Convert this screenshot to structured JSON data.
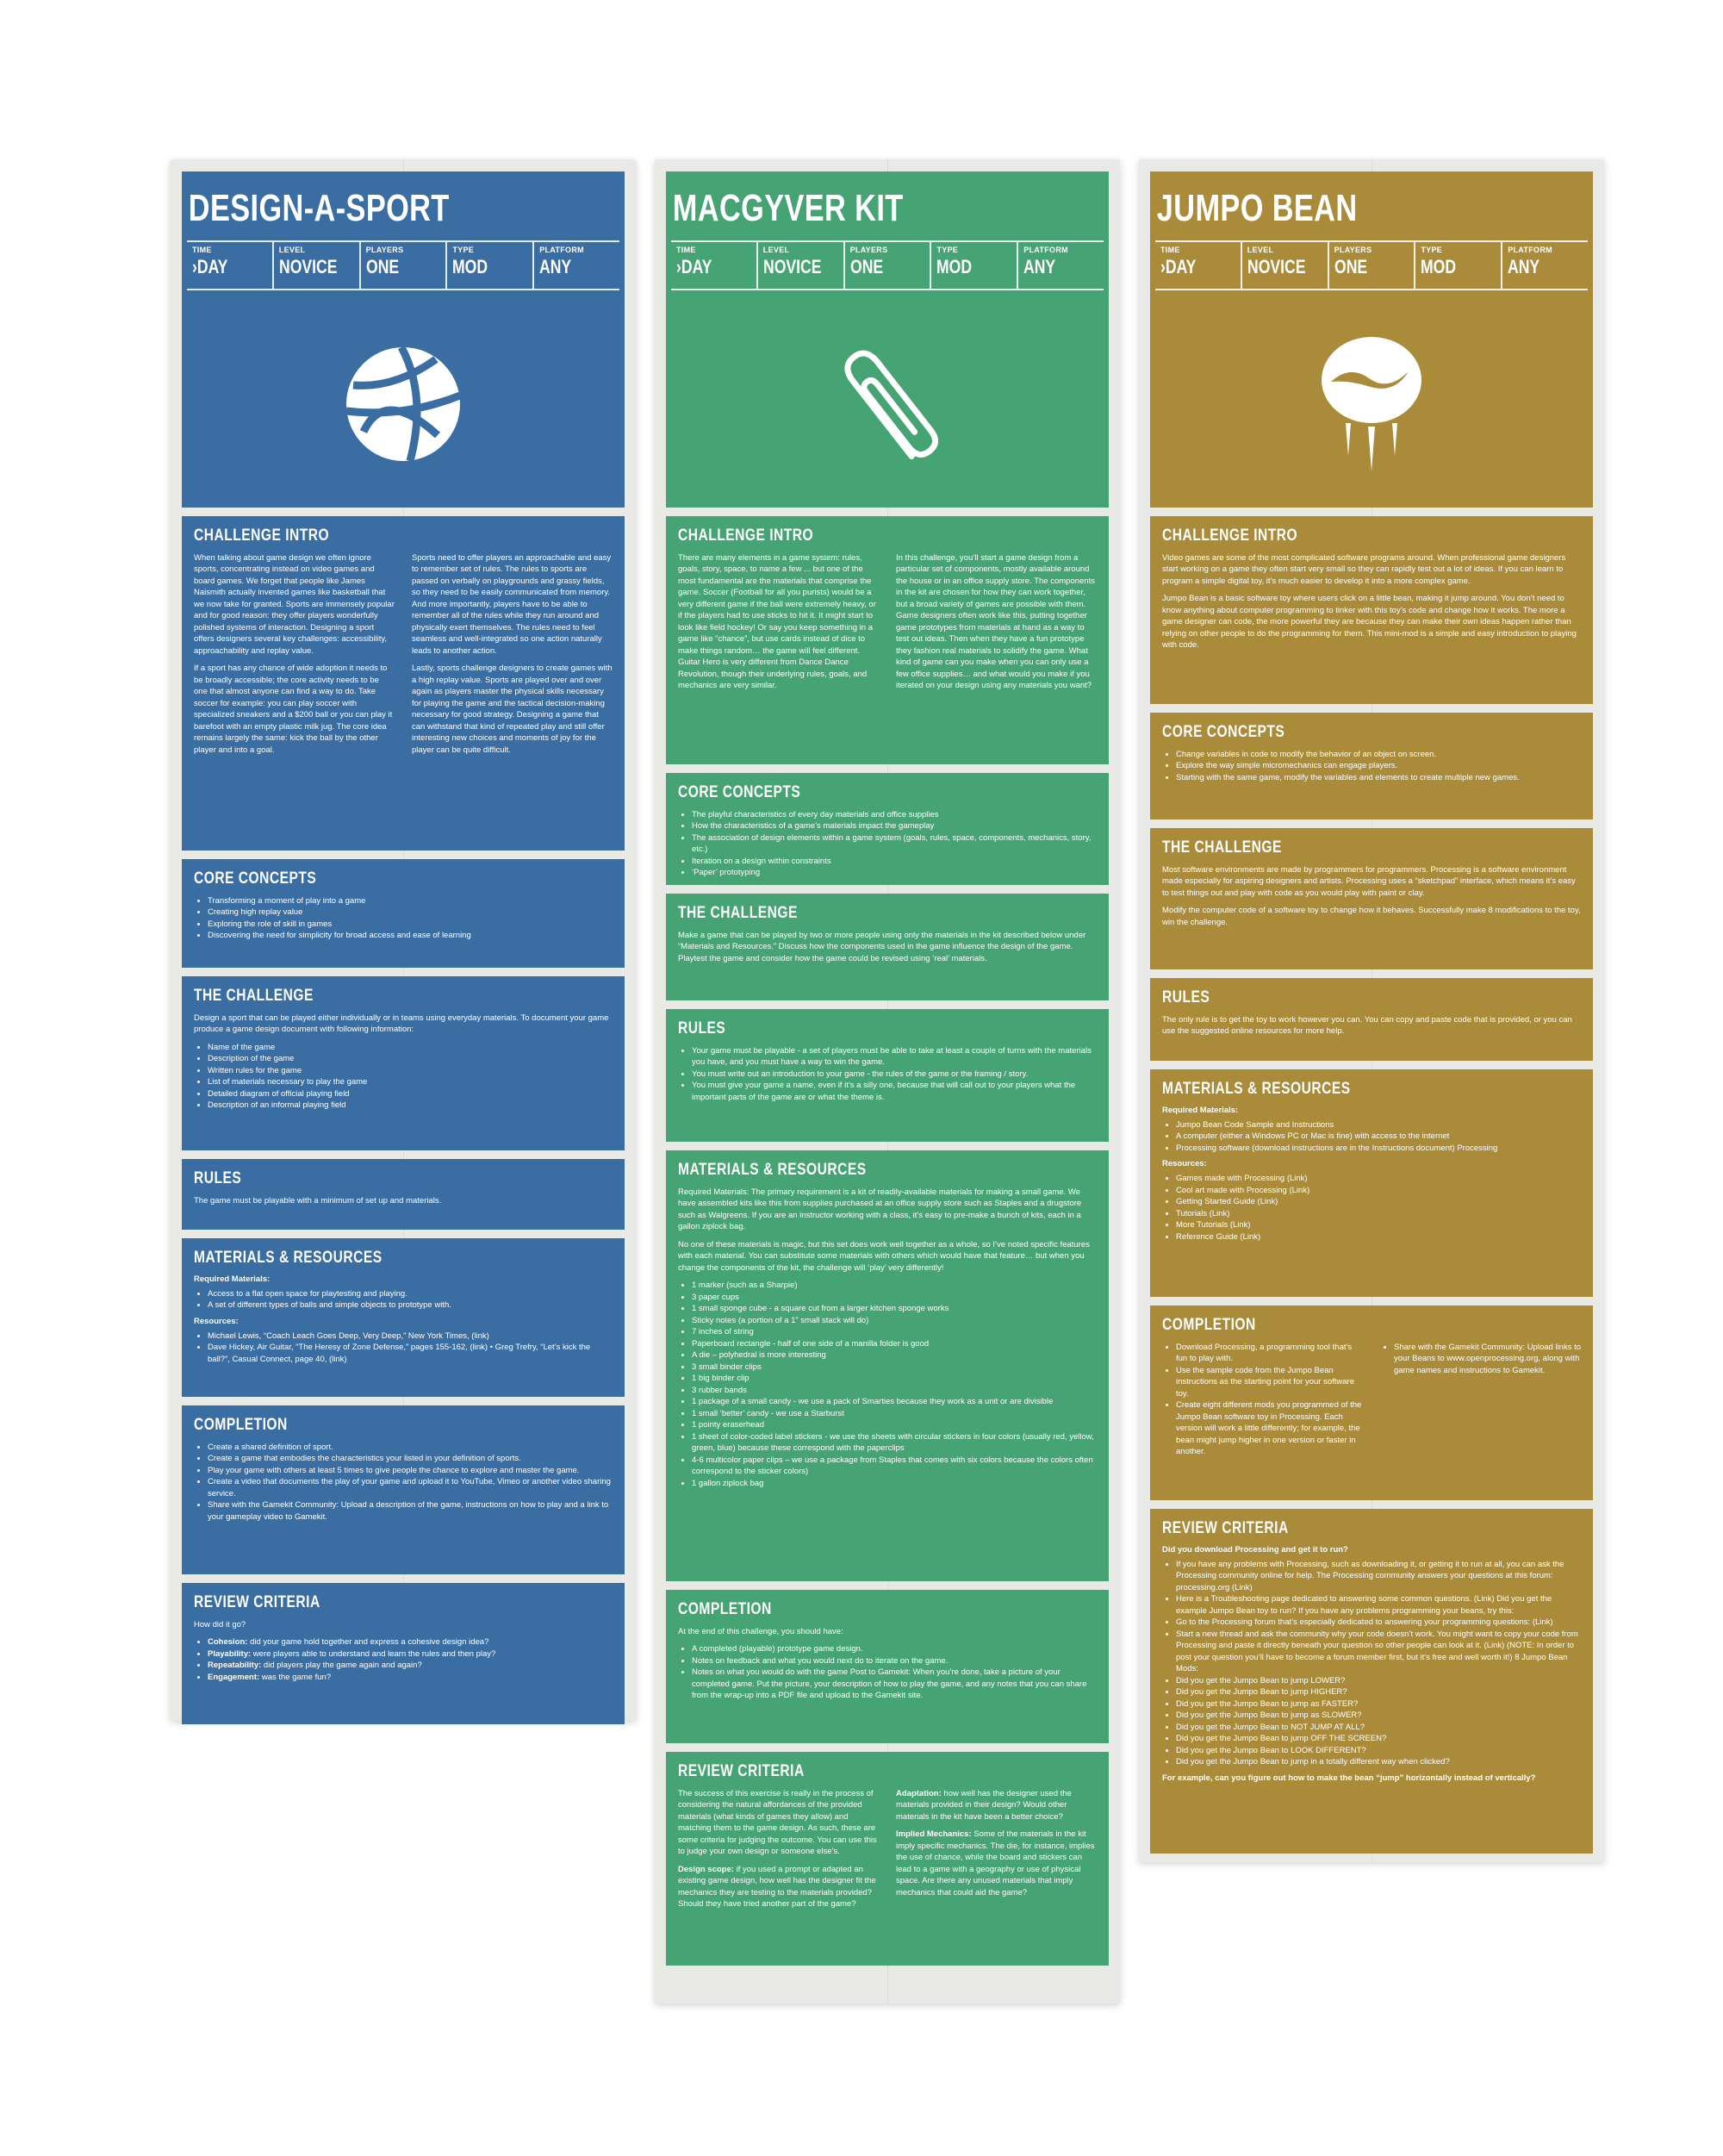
{
  "meta_labels": [
    "TIME",
    "LEVEL",
    "PLAYERS",
    "TYPE",
    "PLATFORM"
  ],
  "colors": {
    "blue": "#3a6ea3",
    "green": "#46a374",
    "gold": "#aa8b3a"
  },
  "posters": [
    {
      "id": "design-a-sport",
      "title": "DESIGN-A-SPORT",
      "meta_values": [
        "›DAY",
        "NOVICE",
        "ONE",
        "MOD",
        "ANY"
      ],
      "icon": "basketball-icon",
      "intro_title": "CHALLENGE INTRO",
      "intro_col1": [
        "When talking about game design we often ignore sports, concentrating instead on video games and board games. We forget that people like James Naismith actually invented games like basketball that we now take for granted. Sports are immensely popular and for good reason: they offer players wonderfully polished systems of interaction. Designing a sport offers designers several key challenges: accessibility, approachability and replay value.",
        "If a sport has any chance of wide adoption it needs to be broadly accessible; the core activity needs to be one that almost anyone can find a way to do. Take soccer for example: you can play soccer with specialized sneakers and a $200 ball or you can play it barefoot with an empty plastic milk jug. The core idea remains largely the same: kick the ball by the other player and into a goal."
      ],
      "intro_col2": [
        "Sports need to offer players an approachable and easy to remember set of rules. The rules to sports are passed on verbally on playgrounds and grassy fields, so they need to be easily communicated from memory. And more importantly, players have to be able to remember all of the rules while they run around and physically exert themselves. The rules need to feel seamless and well-integrated so one action naturally leads to another action.",
        "Lastly, sports challenge designers to create games with a high replay value. Sports are played over and over again as players master the physical skills necessary for playing the game and the tactical decision-making necessary for good strategy. Designing a game that can withstand that kind of repeated play and still offer interesting new choices and moments of joy for the player can be quite difficult."
      ],
      "concepts_title": "CORE CONCEPTS",
      "concepts": [
        "Transforming a moment of play into a game",
        "Creating high replay value",
        "Exploring the role of skill in games",
        "Discovering the need for simplicity for broad access and ease of learning"
      ],
      "challenge_title": "THE CHALLENGE",
      "challenge_text": "Design a sport that can be played either individually or in teams using everyday materials. To document your game produce a game design document with following information:",
      "challenge_list": [
        "Name of the game",
        "Description of the game",
        "Written rules for the game",
        "List of materials necessary to play the game",
        "Detailed diagram of official playing field",
        "Description of an informal playing field"
      ],
      "rules_title": "RULES",
      "rules_text": "The game must be playable with a minimum of set up and materials.",
      "materials_title": "MATERIALS & RESOURCES",
      "required_label": "Required Materials:",
      "required_list": [
        "Access to a flat open space for playtesting and playing.",
        "A set of different types of balls and simple objects to prototype with."
      ],
      "resources_label": "Resources:",
      "resources_list": [
        "Michael Lewis, “Coach Leach Goes Deep, Very Deep,” New York Times, (link)",
        "Dave Hickey, Air Guitar, “The Heresy of Zone Defense,” pages 155-162, (link) • Greg Trefry, “Let’s kick the ball?”, Casual Connect, page 40, (link)"
      ],
      "completion_title": "COMPLETION",
      "completion_list": [
        "Create a shared definition of sport.",
        "Create a game that embodies the characteristics your listed in your definition of sports.",
        "Play your game with others at least 5 times to give people the chance to explore and master the game.",
        "Create a video that documents the play of your game and upload it to YouTube, Vimeo or another video sharing service.",
        "Share with the Gamekit Community: Upload a description of the game, instructions on how to play and a link to your gameplay video to Gamekit."
      ],
      "review_title": "REVIEW CRITERIA",
      "review_intro": "How did it go?",
      "review_list": [
        {
          "k": "Cohesion:",
          "v": " did your game hold together and express a cohesive design idea?"
        },
        {
          "k": "Playability:",
          "v": " were players able to understand and learn the rules and  then play?"
        },
        {
          "k": "Repeatability:",
          "v": " did players play the game again and again?"
        },
        {
          "k": "Engagement:",
          "v": " was the game fun?"
        }
      ]
    },
    {
      "id": "macgyver-kit",
      "title": "MACGYVER KIT",
      "meta_values": [
        "›DAY",
        "NOVICE",
        "ONE",
        "MOD",
        "ANY"
      ],
      "icon": "paperclip-icon",
      "intro_title": "CHALLENGE INTRO",
      "intro_col1": [
        "There are many elements in a game system: rules, goals, story, space, to name a few ... but one of the most fundamental are the materials that comprise the game. Soccer (Football for all you purists) would be a very different game if the ball were extremely heavy, or if the players had to use sticks to hit it. It might start to look like field hockey! Or say you keep something in a game like “chance”, but use cards instead of dice to make things random… the game will feel different. Guitar Hero is very different from Dance Dance Revolution, though their underlying rules, goals, and mechanics are very similar."
      ],
      "intro_col2": [
        "In this challenge, you’ll start a game design from a particular set of components, mostly available around the house or in an office supply store. The components in the kit are chosen for how they can work together, but a broad variety of games are possible with them. Game designers often work like this, putting together game prototypes from materials at hand as a way to test out ideas. Then when they have a fun prototype they fashion real materials to solidify the game. What kind of game can you make when you can only use a few office supplies… and what would you make if you iterated on your design using any materials you want?"
      ],
      "concepts_title": "CORE CONCEPTS",
      "concepts": [
        "The playful characteristics of every day materials and office supplies",
        "How the characteristics of a game’s materials impact the gameplay",
        "The association of design elements within a game system (goals, rules,  space, components, mechanics, story, etc.)",
        "Iteration on a design within constraints",
        "‘Paper’ prototyping"
      ],
      "challenge_title": "THE CHALLENGE",
      "challenge_text": "Make a game that can be played by two or more people using only the materials in the kit described below under “Materials and Resources.” Discuss how the components used in the game influence the design of the game. Playtest the game and consider how the game could be revised using ‘real’ materials.",
      "rules_title": "RULES",
      "rules_list": [
        "Your game must be playable - a set of players must be able to take at least a couple of turns with the materials you have, and you must have a way to win the game.",
        "You must write out an introduction to your game - the rules of the game or the framing / story.",
        "You must give your game a name, even if it’s a silly one, because that will call out to your players what the important parts of the game are or what the theme is."
      ],
      "materials_title": "MATERIALS & RESOURCES",
      "materials_p1": "Required Materials: The primary requirement is a kit of readily-available materials for making a small game. We have assembled kits like this from supplies purchased at an office supply store such as Staples and a drugstore such as Walgreens. If you are an instructor working with a class, it’s easy to pre-make a bunch of kits, each in a gallon ziplock bag.",
      "materials_p2": "No one of these materials is magic, but this set does work well together as a whole, so I’ve noted specific features with each material. You can substitute some materials with others which would have that feature… but when you change the components of the kit, the challenge will ‘play’ very differently!",
      "materials_list": [
        "1 marker (such as a Sharpie)",
        "3 paper cups",
        "1 small sponge cube - a square cut from a larger kitchen sponge works",
        "Sticky notes (a portion of a 1” small stack will do)",
        "7 inches of string",
        "Paperboard rectangle - half of one side of a manilla folder is good",
        "A die – polyhedral is more interesting",
        "3 small binder clips",
        "1 big binder clip",
        "3 rubber bands",
        "1 package of a small candy - we use a pack of Smarties because they work as a unit or are divisible",
        "1 small ‘better’ candy - we use a Starburst",
        "1 pointy eraserhead",
        "1 sheet of color-coded label stickers - we use the sheets with circular stickers in four colors (usually red, yellow, green, blue) because these correspond with the paperclips",
        "4-6 multicolor paper clips – we use a package from Staples that comes with six colors because the colors often correspond to the sticker colors)",
        "1 gallon ziplock bag"
      ],
      "completion_title": "COMPLETION",
      "completion_text": "At the end of this challenge, you should have:",
      "completion_list": [
        "A completed (playable) prototype game design.",
        "Notes on feedback and what you would next do to iterate on the game.",
        "Notes on what you would do with the game Post to Gamekit: When you’re done, take a picture of your completed game. Put the picture, your description of how to play the game, and any notes that you can share from the wrap-up into a PDF file and upload to the Gamekit site."
      ],
      "review_title": "REVIEW CRITERIA",
      "review_col1": [
        {
          "k": "",
          "v": "The success of this exercise is really in the process of considering the natural affordances of the provided materials (what kinds of games they allow) and matching them to the game design. As such, these are some criteria for judging the outcome. You can use this to judge your own design or someone else’s."
        },
        {
          "k": "Design scope:",
          "v": " if you used a prompt or adapted an existing game design, how well has the designer fit the mechanics they are testing to the materials provided? Should they have tried another part of the game?"
        }
      ],
      "review_col2": [
        {
          "k": "Adaptation:",
          "v": " how well has the designer used the materials provided in their design? Would other materials in the kit have been a better choice?"
        },
        {
          "k": "Implied Mechanics:",
          "v": " Some of the materials in the kit imply specific mechanics. The die, for instance, implies the use of chance, while the board and stickers can lead to a game with a geography or use of physical space. Are there any unused materials that imply mechanics that could aid the game?"
        }
      ]
    },
    {
      "id": "jumpo-bean",
      "title": "JUMPO BEAN",
      "meta_values": [
        "›DAY",
        "NOVICE",
        "ONE",
        "MOD",
        "ANY"
      ],
      "icon": "jumping-bean-icon",
      "intro_title": "CHALLENGE INTRO",
      "intro_p": [
        "Video games are some of the most complicated software programs around. When professional game designers start working on a game they often start very small so they can rapidly test out a lot of ideas. If you can learn to program a simple digital toy, it’s much easier to develop it into a more complex game.",
        "Jumpo Bean is a basic software toy where users click on a little bean, making it jump around. You don’t need to know anything about computer programming to tinker with this toy’s code and change how it works. The more a game designer can code, the more powerful they are because they can make their own ideas happen rather than relying on other people to do the programming for them. This mini-mod is a simple and easy introduction to playing with code."
      ],
      "concepts_title": "CORE CONCEPTS",
      "concepts": [
        "Change variables in code to modify the behavior of an object on screen.",
        "Explore the way simple micromechanics can engage players.",
        "Starting with the same game, modify the variables and elements to create multiple new games."
      ],
      "challenge_title": "THE CHALLENGE",
      "challenge_p": [
        "Most software environments are made by programmers for programmers. Processing is a software environment made especially for aspiring designers and artists. Processing uses a “sketchpad” interface, which means it’s easy to test things out and play with code as you would play with paint or clay.",
        "Modify the computer code of a software toy to change how it behaves. Successfully make 8 modifications to the toy, win the challenge."
      ],
      "rules_title": "RULES",
      "rules_text": "The only rule is to get the toy to work however you can. You can copy and paste code that is provided, or you can use the suggested online resources for more help.",
      "materials_title": "MATERIALS & RESOURCES",
      "required_label": "Required Materials:",
      "required_list": [
        "Jumpo Bean Code Sample and Instructions",
        "A computer (either a Windows PC or Mac is fine) with access to the internet",
        "Processing software (download instructions are in the  Instructions document) Processing"
      ],
      "resources_label": "Resources:",
      "resources_list": [
        "Games made with Processing (Link)",
        "Cool art made with Processing (Link)",
        "Getting Started Guide (Link)",
        "Tutorials (Link)",
        "More Tutorials (Link)",
        "Reference Guide (Link)"
      ],
      "completion_title": "COMPLETION",
      "completion_col1": [
        "Download Processing, a programming tool that’s fun to play with.",
        "Use the sample code from the Jumpo Bean instructions as the starting point for your software toy.",
        "Create eight different mods you programmed of the Jumpo Bean software toy in Processing. Each version will work a little differently; for example, the bean might jump higher in one version or faster in another."
      ],
      "completion_col2": [
        "Share with the Gamekit Community: Upload links to your Beans to www.openprocessing.org, along with game names and instructions to Gamekit."
      ],
      "review_title": "REVIEW CRITERIA",
      "review_q": "Did you download Processing and get it to run?",
      "review_list": [
        "If you have any problems with Processing, such as downloading it, or getting it to run at all, you can ask the Processing community online for help. The Processing community answers your questions at this forum: processing.org (Link)",
        "Here is a Troubleshooting page dedicated to answering some common questions. (Link) Did you get the example Jumpo Bean toy to run? If you have any problems programming your beans, try this:",
        "Go to the Processing forum that’s especially dedicated to answering your programming questions: (Link)",
        "Start a new thread and ask the community why your code doesn’t work. You might want to copy your code from Processing and paste it directly beneath your question so other people can look at it. (Link) (NOTE: In order to post your question you’ll have to become a forum member first, but it’s free and well worth it!) 8 Jumpo Bean Mods:",
        "Did you get the Jumpo Bean to jump LOWER?",
        "Did you get the Jumpo Bean to jump HIGHER?",
        "Did you get the Jumpo Bean to jump as FASTER?",
        "Did you get the Jumpo Bean to jump as SLOWER?",
        "Did you get the Jumpo Bean to NOT JUMP AT ALL?",
        "Did you get the Jumpo Bean to jump OFF THE SCREEN?",
        "Did you get the Jumpo Bean to LOOK DIFFERENT?",
        "Did you get the Jumpo Bean to jump in a totally different way when clicked?"
      ],
      "review_final": "For example, can you figure out how to make the bean “jump” horizontally instead of vertically?"
    }
  ]
}
